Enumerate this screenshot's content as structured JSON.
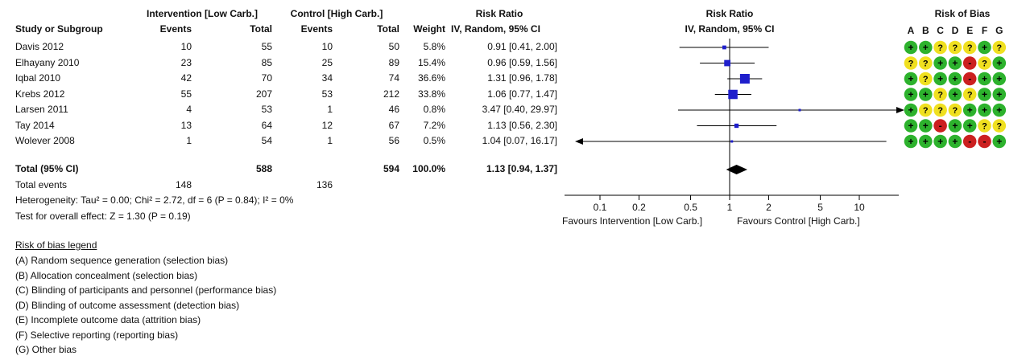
{
  "headers": {
    "intervention_group": "Intervention [Low Carb.]",
    "control_group": "Control [High Carb.]",
    "risk_ratio_top": "Risk Ratio",
    "study": "Study or Subgroup",
    "events_i": "Events",
    "total_i": "Total",
    "events_c": "Events",
    "total_c": "Total",
    "weight": "Weight",
    "rr_method": "IV, Random, 95% CI",
    "plot_title": "Risk Ratio",
    "plot_method": "IV, Random, 95% CI",
    "rob_title": "Risk of Bias",
    "rob_domains": [
      "A",
      "B",
      "C",
      "D",
      "E",
      "F",
      "G"
    ]
  },
  "studies": [
    {
      "name": "Davis 2012",
      "events_i": "10",
      "total_i": "55",
      "events_c": "10",
      "total_c": "50",
      "weight": "5.8%",
      "ci": "0.91 [0.41, 2.00]"
    },
    {
      "name": "Elhayany 2010",
      "events_i": "23",
      "total_i": "85",
      "events_c": "25",
      "total_c": "89",
      "weight": "15.4%",
      "ci": "0.96 [0.59, 1.56]"
    },
    {
      "name": "Iqbal 2010",
      "events_i": "42",
      "total_i": "70",
      "events_c": "34",
      "total_c": "74",
      "weight": "36.6%",
      "ci": "1.31 [0.96, 1.78]"
    },
    {
      "name": "Krebs 2012",
      "events_i": "55",
      "total_i": "207",
      "events_c": "53",
      "total_c": "212",
      "weight": "33.8%",
      "ci": "1.06 [0.77, 1.47]"
    },
    {
      "name": "Larsen 2011",
      "events_i": "4",
      "total_i": "53",
      "events_c": "1",
      "total_c": "46",
      "weight": "0.8%",
      "ci": "3.47 [0.40, 29.97]"
    },
    {
      "name": "Tay 2014",
      "events_i": "13",
      "total_i": "64",
      "events_c": "12",
      "total_c": "67",
      "weight": "7.2%",
      "ci": "1.13 [0.56, 2.30]"
    },
    {
      "name": "Wolever 2008",
      "events_i": "1",
      "total_i": "54",
      "events_c": "1",
      "total_c": "56",
      "weight": "0.5%",
      "ci": "1.04 [0.07, 16.17]"
    }
  ],
  "total": {
    "label": "Total (95% CI)",
    "total_i": "588",
    "total_c": "594",
    "weight": "100.0%",
    "ci": "1.13 [0.94, 1.37]"
  },
  "total_events": {
    "label": "Total events",
    "events_i": "148",
    "events_c": "136"
  },
  "heterogeneity": "Heterogeneity: Tau² = 0.00; Chi² = 2.72, df = 6 (P = 0.84); I² = 0%",
  "overall_effect": "Test for overall effect: Z = 1.30 (P = 0.19)",
  "axis": {
    "favours_left": "Favours Intervention [Low Carb.]",
    "favours_right": "Favours Control [High Carb.]"
  },
  "legend": {
    "title": "Risk of bias legend",
    "items": [
      {
        "letter": "(A)",
        "text": "Random sequence generation (selection bias)"
      },
      {
        "letter": "(B)",
        "text": "Allocation concealment (selection bias)"
      },
      {
        "letter": "(C)",
        "text": "Blinding of participants and personnel (performance bias)"
      },
      {
        "letter": "(D)",
        "text": "Blinding of outcome assessment (detection bias)"
      },
      {
        "letter": "(E)",
        "text": "Incomplete outcome data (attrition bias)"
      },
      {
        "letter": "(F)",
        "text": "Selective reporting (reporting bias)"
      },
      {
        "letter": "(G)",
        "text": "Other bias"
      }
    ]
  },
  "colors": {
    "low": "#2db22d",
    "unclear": "#f0e020",
    "high": "#cc2020",
    "square": "#1f1fcc",
    "diamond": "#000000"
  },
  "chart_data": {
    "type": "forest",
    "scale": "log",
    "ticks": [
      0.1,
      0.2,
      0.5,
      1,
      2,
      5,
      10
    ],
    "tick_labels": [
      "0.1",
      "0.2",
      "0.5",
      "1",
      "2",
      "5",
      "10"
    ],
    "null_value": 1,
    "studies": [
      {
        "name": "Davis 2012",
        "rr": 0.91,
        "lo": 0.41,
        "hi": 2.0,
        "weight": 5.8
      },
      {
        "name": "Elhayany 2010",
        "rr": 0.96,
        "lo": 0.59,
        "hi": 1.56,
        "weight": 15.4
      },
      {
        "name": "Iqbal 2010",
        "rr": 1.31,
        "lo": 0.96,
        "hi": 1.78,
        "weight": 36.6
      },
      {
        "name": "Krebs 2012",
        "rr": 1.06,
        "lo": 0.77,
        "hi": 1.47,
        "weight": 33.8
      },
      {
        "name": "Larsen 2011",
        "rr": 3.47,
        "lo": 0.4,
        "hi": 29.97,
        "weight": 0.8
      },
      {
        "name": "Tay 2014",
        "rr": 1.13,
        "lo": 0.56,
        "hi": 2.3,
        "weight": 7.2
      },
      {
        "name": "Wolever 2008",
        "rr": 1.04,
        "lo": 0.07,
        "hi": 16.17,
        "weight": 0.5
      }
    ],
    "pooled": {
      "rr": 1.13,
      "lo": 0.94,
      "hi": 1.37
    },
    "risk_of_bias": [
      [
        "+",
        "+",
        "?",
        "?",
        "?",
        "+",
        "?"
      ],
      [
        "?",
        "?",
        "+",
        "+",
        "-",
        "?",
        "+"
      ],
      [
        "+",
        "?",
        "+",
        "+",
        "-",
        "+",
        "+"
      ],
      [
        "+",
        "+",
        "?",
        "+",
        "?",
        "+",
        "+"
      ],
      [
        "+",
        "?",
        "?",
        "?",
        "+",
        "+",
        "+"
      ],
      [
        "+",
        "+",
        "-",
        "+",
        "+",
        "?",
        "?"
      ],
      [
        "+",
        "+",
        "+",
        "+",
        "-",
        "-",
        "+"
      ]
    ]
  }
}
